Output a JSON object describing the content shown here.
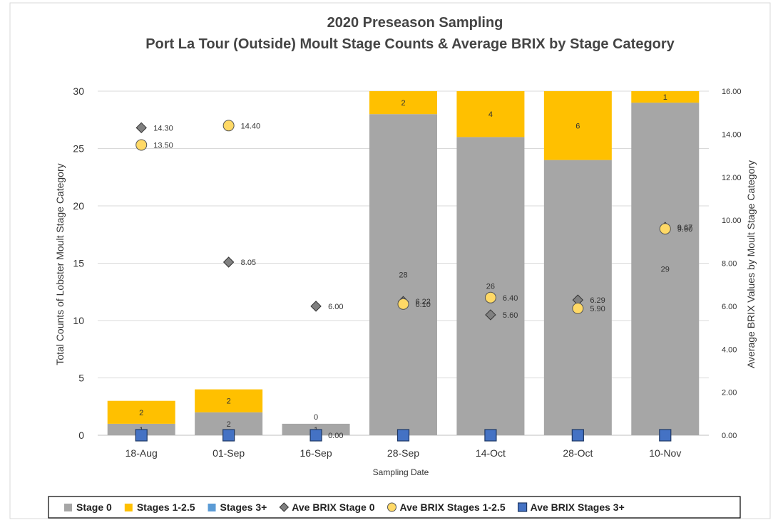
{
  "chart_data": {
    "type": "bar",
    "title": "2020 Preseason Sampling",
    "subtitle": "Port La Tour (Outside) Moult Stage Counts & Average BRIX by Stage Category",
    "xlabel": "Sampling Date",
    "ylabel": "Total Counts of Lobster Moult Stage Category",
    "y2label": "Average BRIX Values by Moult Stage Category",
    "ylim": [
      0,
      30
    ],
    "y2lim": [
      0,
      16
    ],
    "yticks": [
      "0",
      "5",
      "10",
      "15",
      "20",
      "25",
      "30"
    ],
    "y2ticks": [
      "0.00",
      "2.00",
      "4.00",
      "6.00",
      "8.00",
      "10.00",
      "12.00",
      "14.00",
      "16.00"
    ],
    "grid": true,
    "legend_position": "bottom",
    "categories": [
      "18-Aug",
      "01-Sep",
      "16-Sep",
      "28-Sep",
      "14-Oct",
      "28-Oct",
      "10-Nov"
    ],
    "stacked_bars": [
      {
        "name": "Stage 0",
        "color": "#a6a6a6",
        "values": [
          1,
          2,
          1,
          28,
          26,
          24,
          29
        ],
        "labels": [
          "1",
          "2",
          "1",
          "28",
          "26",
          "",
          "29"
        ]
      },
      {
        "name": "Stages 1-2.5",
        "color": "#ffc000",
        "values": [
          2,
          2,
          0,
          2,
          4,
          6,
          1
        ],
        "labels": [
          "2",
          "2",
          "0",
          "2",
          "4",
          "6",
          "1"
        ]
      },
      {
        "name": "Stages 3+",
        "color": "#5b9bd5",
        "values": [
          0,
          0,
          0,
          0,
          0,
          0,
          0
        ],
        "labels": [
          "",
          "",
          "",
          "",
          "",
          "",
          ""
        ]
      }
    ],
    "markers": [
      {
        "name": "Ave BRIX Stage 0",
        "shape": "diamond",
        "color": "#808080",
        "values": [
          14.3,
          8.05,
          6.0,
          6.22,
          5.6,
          6.29,
          9.67
        ],
        "labels": [
          "14.30",
          "8.05",
          "6.00",
          "6.22",
          "5.60",
          "6.29",
          "9.67"
        ]
      },
      {
        "name": "Ave BRIX Stages 1-2.5",
        "shape": "circle",
        "color": "#ffd966",
        "values": [
          13.5,
          14.4,
          null,
          6.1,
          6.4,
          5.9,
          9.6
        ],
        "labels": [
          "13.50",
          "14.40",
          "",
          "6.10",
          "6.40",
          "5.90",
          "9.60"
        ]
      },
      {
        "name": "Ave BRIX Stages 3+",
        "shape": "square",
        "color": "#4472c4",
        "values": [
          0,
          0,
          0,
          0,
          0,
          0,
          0
        ],
        "labels": [
          "",
          "",
          "0.00",
          "",
          "",
          "",
          ""
        ]
      }
    ],
    "legend": [
      {
        "label": "Stage 0",
        "shape": "rect",
        "color": "#a6a6a6"
      },
      {
        "label": "Stages 1-2.5",
        "shape": "rect",
        "color": "#ffc000"
      },
      {
        "label": "Stages 3+",
        "shape": "rect",
        "color": "#5b9bd5"
      },
      {
        "label": "Ave BRIX Stage 0",
        "shape": "diamond",
        "color": "#808080"
      },
      {
        "label": "Ave BRIX Stages 1-2.5",
        "shape": "circle",
        "color": "#ffd966"
      },
      {
        "label": "Ave BRIX Stages 3+",
        "shape": "square",
        "color": "#4472c4"
      }
    ]
  }
}
